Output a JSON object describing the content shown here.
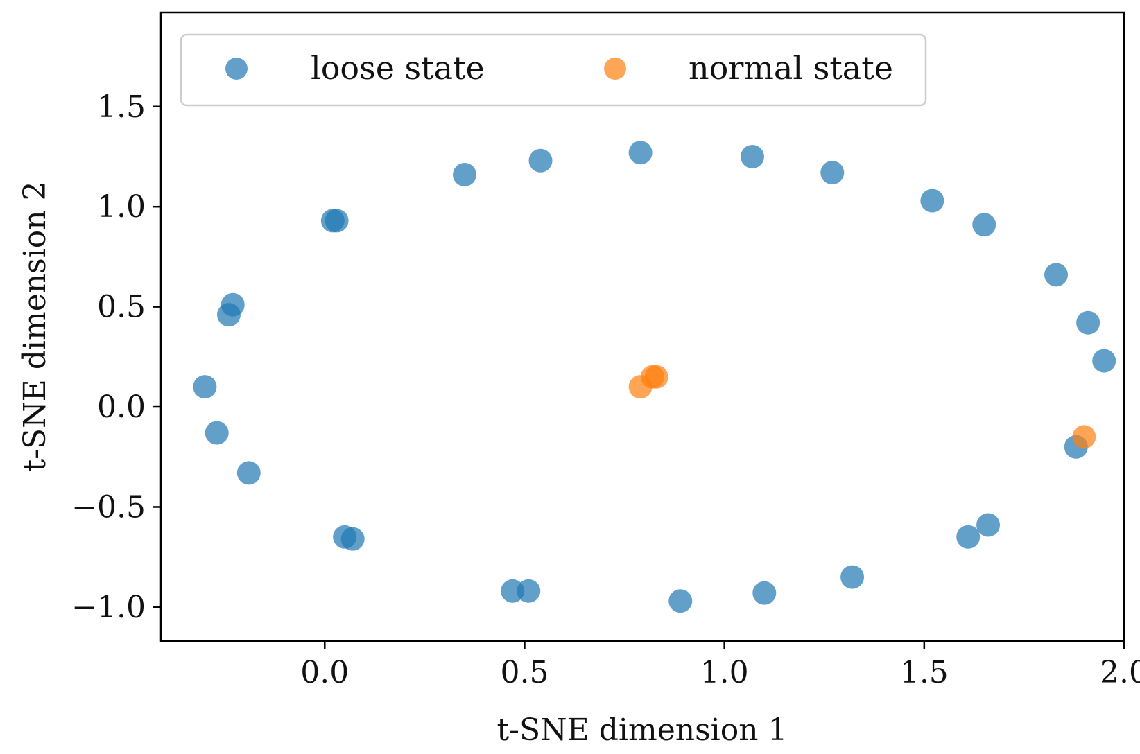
{
  "chart_data": {
    "type": "scatter",
    "title": "",
    "xlabel": "t-SNE dimension 1",
    "ylabel": "t-SNE dimension 2",
    "xlim": [
      -0.41,
      2.0
    ],
    "ylim": [
      -1.17,
      1.97
    ],
    "xticks": [
      0.0,
      0.5,
      1.0,
      1.5,
      2.0
    ],
    "xtick_labels": [
      "0.0",
      "0.5",
      "1.0",
      "1.5",
      "2.0"
    ],
    "yticks": [
      -1.0,
      -0.5,
      0.0,
      0.5,
      1.0,
      1.5
    ],
    "ytick_labels": [
      "−1.0",
      "−0.5",
      "0.0",
      "0.5",
      "1.0",
      "1.5"
    ],
    "grid": false,
    "legend_position": "top",
    "series": [
      {
        "name": "loose state",
        "color": "#1f77b4",
        "points": [
          {
            "x": 0.35,
            "y": 1.16
          },
          {
            "x": 0.54,
            "y": 1.23
          },
          {
            "x": 0.79,
            "y": 1.27
          },
          {
            "x": 1.07,
            "y": 1.25
          },
          {
            "x": 1.27,
            "y": 1.17
          },
          {
            "x": 1.52,
            "y": 1.03
          },
          {
            "x": 1.65,
            "y": 0.91
          },
          {
            "x": 1.83,
            "y": 0.66
          },
          {
            "x": 1.91,
            "y": 0.42
          },
          {
            "x": 1.95,
            "y": 0.23
          },
          {
            "x": 1.88,
            "y": -0.2
          },
          {
            "x": 1.66,
            "y": -0.59
          },
          {
            "x": 1.61,
            "y": -0.65
          },
          {
            "x": 1.32,
            "y": -0.85
          },
          {
            "x": 1.1,
            "y": -0.93
          },
          {
            "x": 0.89,
            "y": -0.97
          },
          {
            "x": 0.51,
            "y": -0.92
          },
          {
            "x": 0.47,
            "y": -0.92
          },
          {
            "x": 0.07,
            "y": -0.66
          },
          {
            "x": 0.05,
            "y": -0.65
          },
          {
            "x": -0.19,
            "y": -0.33
          },
          {
            "x": -0.27,
            "y": -0.13
          },
          {
            "x": -0.3,
            "y": 0.1
          },
          {
            "x": -0.24,
            "y": 0.46
          },
          {
            "x": -0.23,
            "y": 0.51
          },
          {
            "x": 0.02,
            "y": 0.93
          },
          {
            "x": 0.03,
            "y": 0.93
          }
        ]
      },
      {
        "name": "normal state",
        "color": "#ff7f0e",
        "points": [
          {
            "x": 0.79,
            "y": 0.1
          },
          {
            "x": 0.82,
            "y": 0.15
          },
          {
            "x": 0.83,
            "y": 0.15
          },
          {
            "x": 1.9,
            "y": -0.15
          }
        ]
      }
    ]
  }
}
